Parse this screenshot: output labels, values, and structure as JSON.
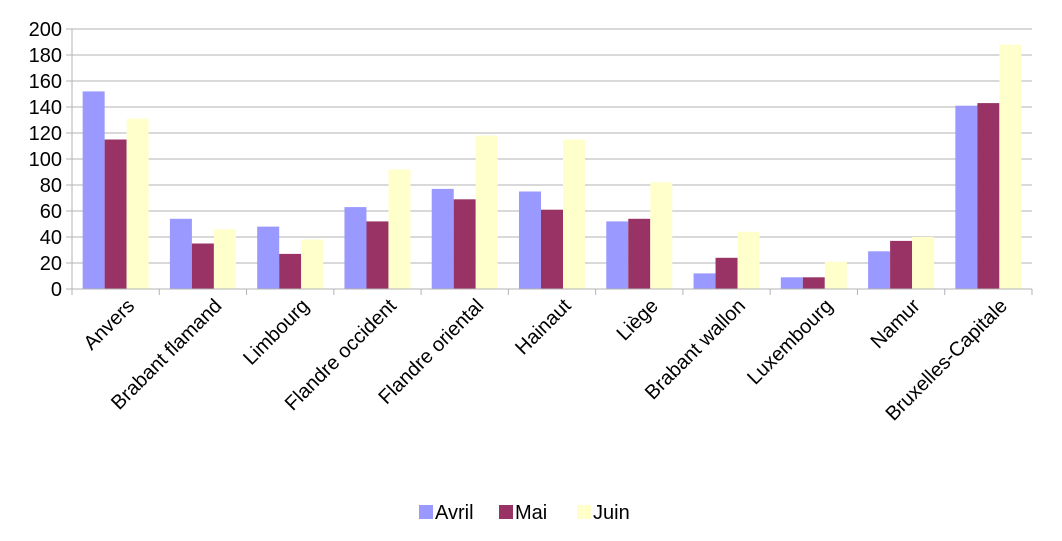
{
  "chart_data": {
    "type": "bar",
    "categories": [
      "Anvers",
      "Brabant flamand",
      "Limbourg",
      "Flandre occident",
      "Flandre oriental",
      "Hainaut",
      "Liège",
      "Brabant wallon",
      "Luxembourg",
      "Namur",
      "Bruxelles-Capitale"
    ],
    "series": [
      {
        "name": "Avril",
        "color": "#9999ff",
        "values": [
          152,
          54,
          48,
          63,
          77,
          75,
          52,
          12,
          9,
          29,
          141
        ]
      },
      {
        "name": "Mai",
        "color": "#993366",
        "values": [
          115,
          35,
          27,
          52,
          69,
          61,
          54,
          24,
          9,
          37,
          143
        ]
      },
      {
        "name": "Juin",
        "color": "#ffffcc",
        "values": [
          131,
          46,
          38,
          92,
          118,
          115,
          82,
          44,
          21,
          40,
          188
        ]
      }
    ],
    "yticks": [
      "0",
      "20",
      "40",
      "60",
      "80",
      "100",
      "120",
      "140",
      "160",
      "180",
      "200"
    ],
    "ylim": [
      0,
      200
    ],
    "grid": true,
    "legend_position": "bottom-center",
    "title": "",
    "xlabel": "",
    "ylabel": ""
  }
}
